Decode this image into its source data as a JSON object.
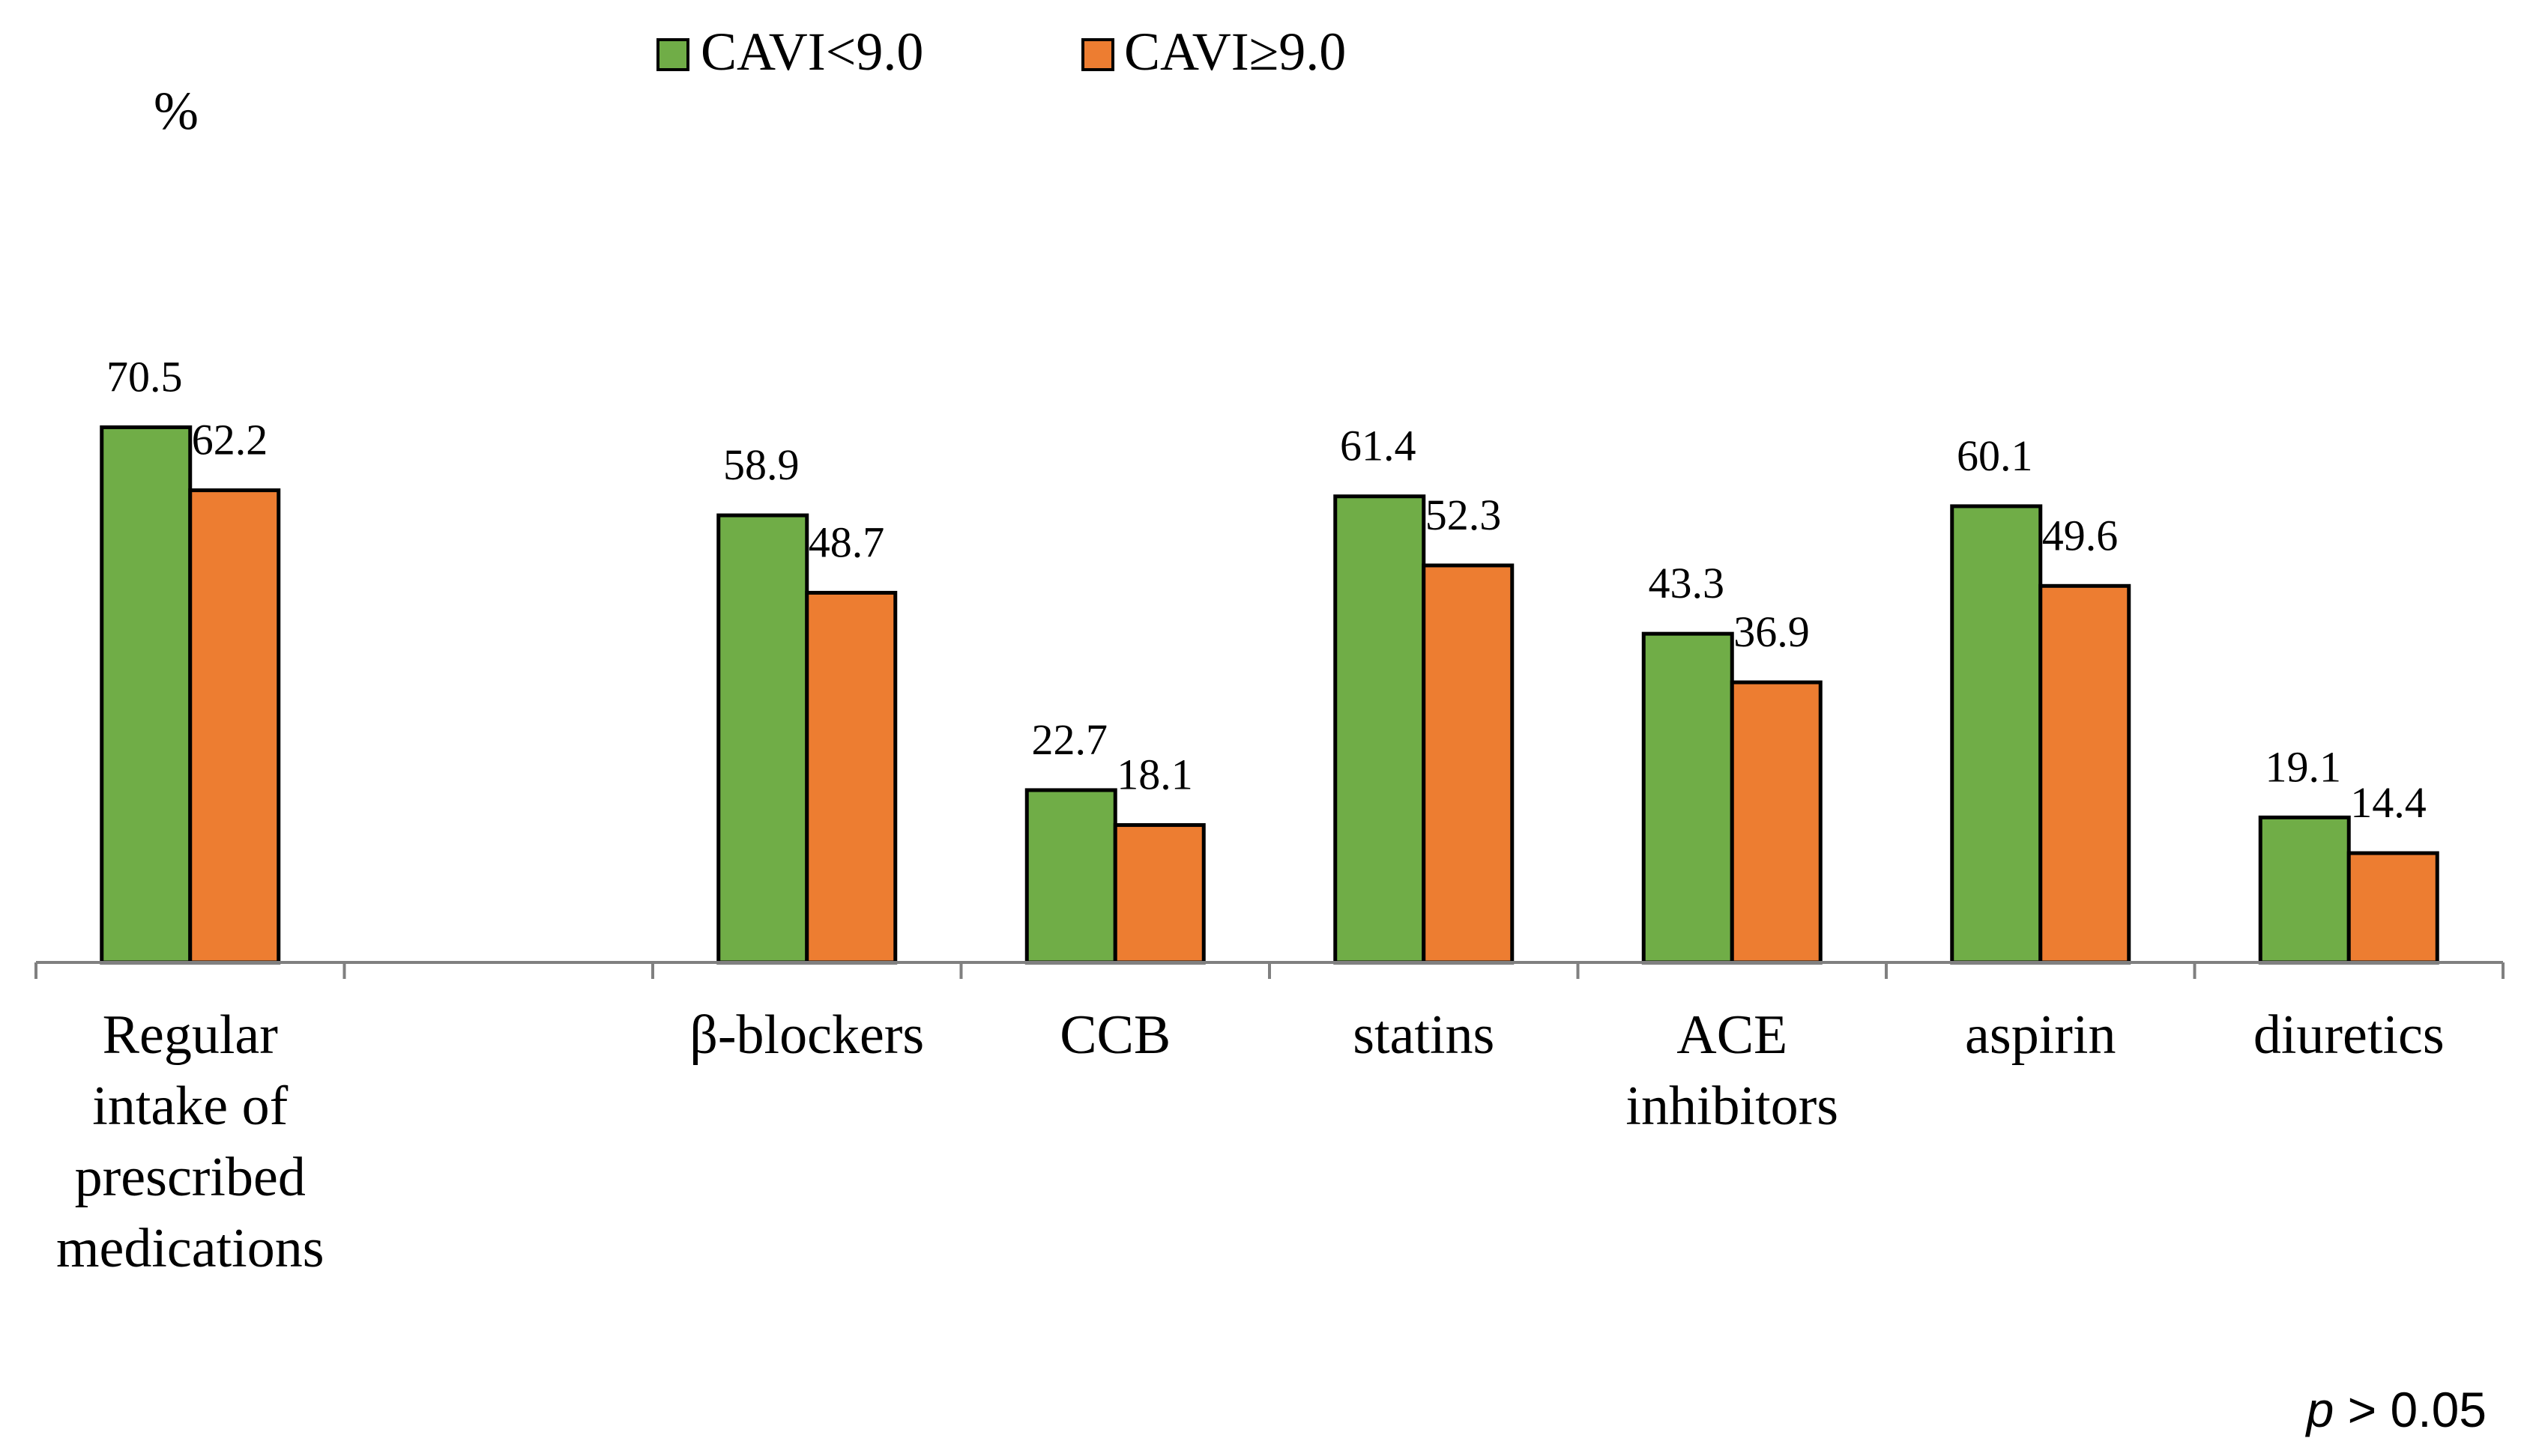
{
  "chart_data": {
    "type": "bar",
    "title": "",
    "xlabel": "",
    "ylabel": "%",
    "ylim": [
      0,
      100
    ],
    "grid": false,
    "legend_position": "top-center",
    "categories": [
      "Regular intake of prescribed medications",
      "",
      "β-blockers",
      "CCB",
      "statins",
      "ACE inhibitors",
      "aspirin",
      "diuretics"
    ],
    "category_lines": [
      [
        "Regular",
        "intake of",
        "prescribed",
        "medications"
      ],
      [],
      [
        "β-blockers"
      ],
      [
        "CCB"
      ],
      [
        "statins"
      ],
      [
        "ACE",
        "inhibitors"
      ],
      [
        "aspirin"
      ],
      [
        "diuretics"
      ]
    ],
    "series": [
      {
        "name": "CAVI<9.0",
        "color": "#70ad47",
        "values": [
          70.5,
          null,
          58.9,
          22.7,
          61.4,
          43.3,
          60.1,
          19.1
        ]
      },
      {
        "name": "CAVI≥9.0",
        "color": "#ed7d31",
        "values": [
          62.2,
          null,
          48.7,
          18.1,
          52.3,
          36.9,
          49.6,
          14.4
        ]
      }
    ],
    "annotation": {
      "italic": "p",
      "text": " > 0.05"
    }
  }
}
